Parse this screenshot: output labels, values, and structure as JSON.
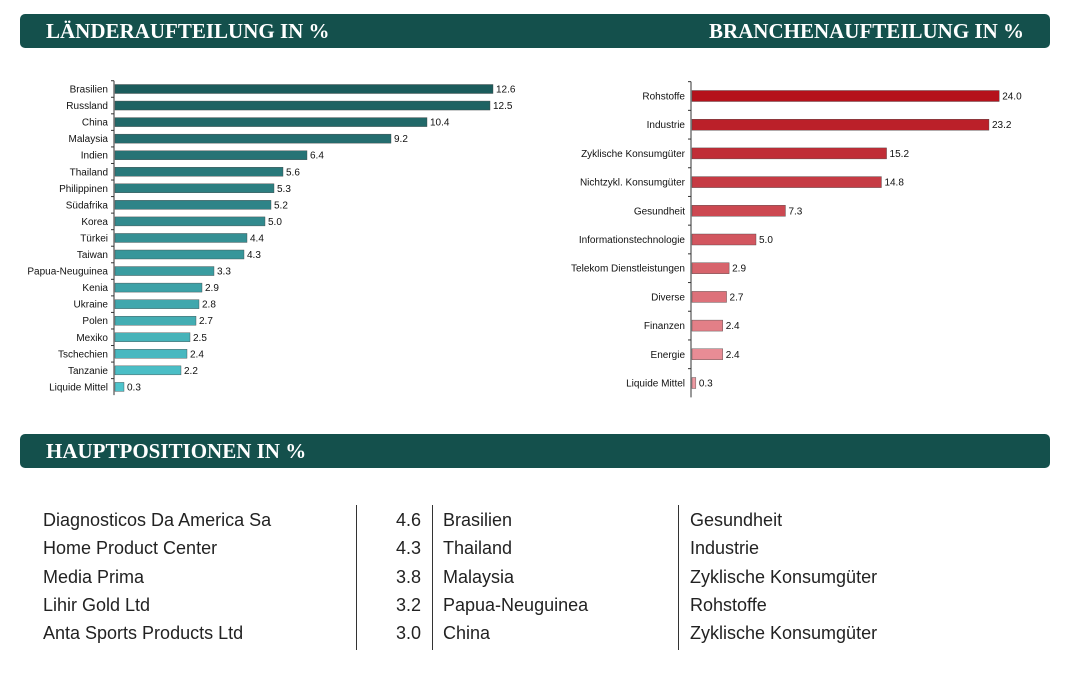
{
  "banners": {
    "countries": "LÄNDERAUFTEILUNG IN %",
    "sectors": "BRANCHENAUFTEILUNG IN %",
    "positions": "HAUPTPOSITIONEN IN %"
  },
  "colors": {
    "banner": "#14504c",
    "country_dark": "#1b5c5c",
    "country_light": "#4ec4cc",
    "sector_dark": "#b5121b",
    "sector_light": "#ee9aa2"
  },
  "chart_data": [
    {
      "type": "bar",
      "orientation": "horizontal",
      "title": "LÄNDERAUFTEILUNG IN %",
      "categories": [
        "Brasilien",
        "Russland",
        "China",
        "Malaysia",
        "Indien",
        "Thailand",
        "Philippinen",
        "Südafrika",
        "Korea",
        "Türkei",
        "Taiwan",
        "Papua-Neuguinea",
        "Kenia",
        "Ukraine",
        "Polen",
        "Mexiko",
        "Tschechien",
        "Tanzanie",
        "Liquide Mittel"
      ],
      "values": [
        12.6,
        12.5,
        10.4,
        9.2,
        6.4,
        5.6,
        5.3,
        5.2,
        5.0,
        4.4,
        4.3,
        3.3,
        2.9,
        2.8,
        2.7,
        2.5,
        2.4,
        2.2,
        0.3
      ],
      "labels": [
        "12.6",
        "12.5",
        "10.4",
        "9.2",
        "6.4",
        "5.6",
        "5.3",
        "5.2",
        "5.0",
        "4.4",
        "4.3",
        "3.3",
        "2.9",
        "2.8",
        "2.7",
        "2.5",
        "2.4",
        "2.2",
        "0.3"
      ],
      "xlim": [
        0,
        13
      ]
    },
    {
      "type": "bar",
      "orientation": "horizontal",
      "title": "BRANCHENAUFTEILUNG IN %",
      "categories": [
        "Rohstoffe",
        "Industrie",
        "Zyklische Konsumgüter",
        "Nichtzykl. Konsumgüter",
        "Gesundheit",
        "Informationstechnologie",
        "Telekom Dienstleistungen",
        "Diverse",
        "Finanzen",
        "Energie",
        "Liquide Mittel"
      ],
      "values": [
        24.0,
        23.2,
        15.2,
        14.8,
        7.3,
        5.0,
        2.9,
        2.7,
        2.4,
        2.4,
        0.3
      ],
      "labels": [
        "24.0",
        "23.2",
        "15.2",
        "14.8",
        "7.3",
        "5.0",
        "2.9",
        "2.7",
        "2.4",
        "2.4",
        "0.3"
      ],
      "xlim": [
        0,
        25
      ]
    }
  ],
  "positions": [
    {
      "name": "Diagnosticos Da America Sa",
      "weight": "4.6",
      "country": "Brasilien",
      "sector": "Gesundheit"
    },
    {
      "name": "Home Product Center",
      "weight": "4.3",
      "country": "Thailand",
      "sector": "Industrie"
    },
    {
      "name": "Media Prima",
      "weight": "3.8",
      "country": "Malaysia",
      "sector": "Zyklische Konsumgüter"
    },
    {
      "name": "Lihir Gold Ltd",
      "weight": "3.2",
      "country": "Papua-Neuguinea",
      "sector": "Rohstoffe"
    },
    {
      "name": "Anta Sports Products Ltd",
      "weight": "3.0",
      "country": "China",
      "sector": "Zyklische Konsumgüter"
    }
  ]
}
